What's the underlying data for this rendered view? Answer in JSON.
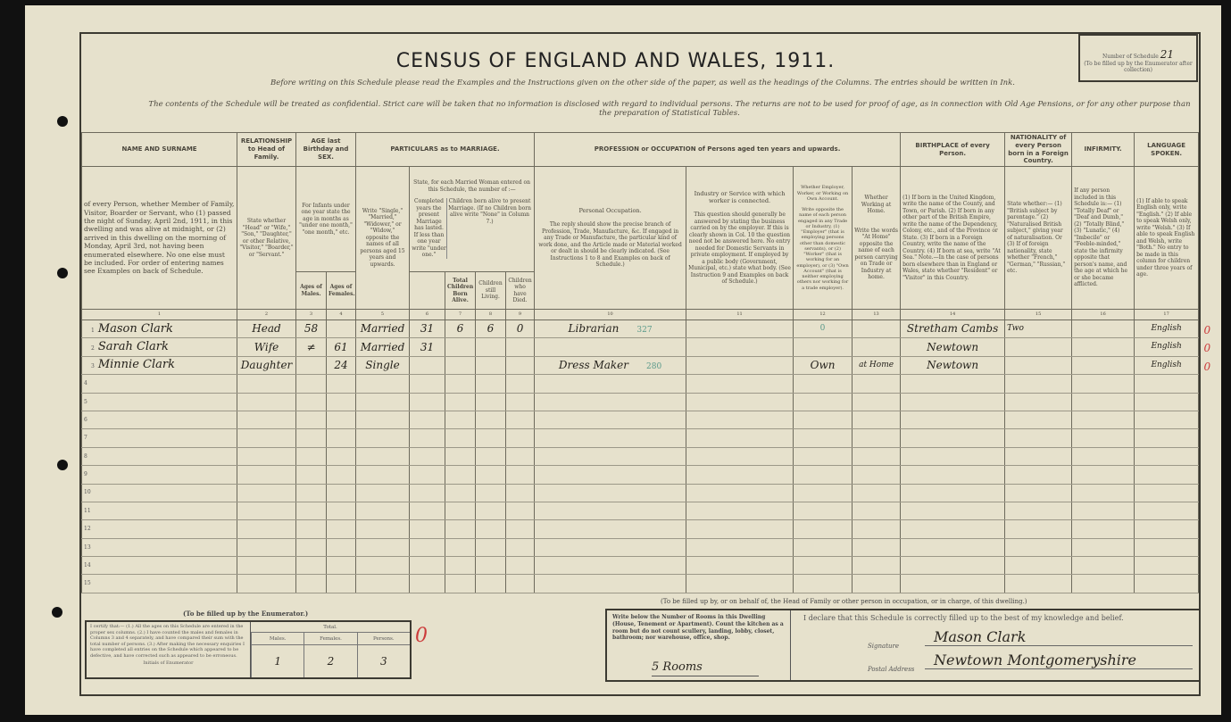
{
  "title": "CENSUS OF ENGLAND AND WALES, 1911.",
  "instructions_line1": "Before writing on this Schedule please read the Examples and the Instructions given on the other side of the paper, as well as the headings of the Columns. The entries should be written in Ink.",
  "instructions_line2": "The contents of the Schedule will be treated as confidential. Strict care will be taken that no information is disclosed with regard to individual persons. The returns are not to be used for proof of age, as in connection with Old Age Pensions, or for any other purpose than the preparation of Statistical Tables.",
  "schedule": {
    "label": "Number of Schedule",
    "value": "21",
    "note": "(To be filled up by the Enumerator after collection)"
  },
  "headers": {
    "name": "NAME AND SURNAME",
    "relationship": "RELATIONSHIP to Head of Family.",
    "age": "AGE last Birthday and SEX.",
    "marriage": "PARTICULARS as to MARRIAGE.",
    "profession": "PROFESSION or OCCUPATION of Persons aged ten years and upwards.",
    "birthplace": "BIRTHPLACE of every Person.",
    "nationality": "NATIONALITY of every Person born in a Foreign Country.",
    "infirmity": "INFIRMITY.",
    "language": "LANGUAGE SPOKEN."
  },
  "descs": {
    "name": "of every Person, whether Member of Family, Visitor, Boarder or Servant, who (1) passed the night of Sunday, April 2nd, 1911, in this dwelling and was alive at midnight, or (2) arrived in this dwelling on the morning of Monday, April 3rd, not having been enumerated elsewhere. No one else must be included. For order of entering names see Examples on back of Schedule.",
    "relationship": "State whether \"Head\" or \"Wife,\" \"Son,\" \"Daughter,\" or other Relative, \"Visitor,\" \"Boarder,\" or \"Servant.\"",
    "age": "For Infants under one year state the age in months as \"under one month,\" \"one month,\" etc.",
    "ages_males": "Ages of Males.",
    "ages_females": "Ages of Females.",
    "condition": "Write \"Single,\" \"Married,\" \"Widower,\" or \"Widow,\" opposite the names of all persons aged 15 years and upwards.",
    "married_woman": "State, for each Married Woman entered on this Schedule, the number of :—",
    "years_married": "Completed years the present Marriage has lasted. If less than one year write \"under one.\"",
    "children_header": "Children born alive to present Marriage. (If no Children born alive write \"None\" in Column 7.)",
    "total_children": "Total Children Born Alive.",
    "children_living": "Children still Living.",
    "children_died": "Children who have Died.",
    "personal_occupation": "Personal Occupation.",
    "personal_occupation_desc": "The reply should show the precise branch of Profession, Trade, Manufacture, &c. If engaged in any Trade or Manufacture, the particular kind of work done, and the Article made or Material worked or dealt in should be clearly indicated. (See Instructions 1 to 8 and Examples on back of Schedule.)",
    "industry": "Industry or Service with which worker is connected.",
    "industry_desc": "This question should generally be answered by stating the business carried on by the employer. If this is clearly shown in Col. 10 the question need not be answered here. No entry needed for Domestic Servants in private employment. If employed by a public body (Government, Municipal, etc.) state what body. (See Instruction 9 and Examples on back of Schedule.)",
    "employer": "Whether Employer, Worker, or Working on Own Account.",
    "employer_desc": "Write opposite the name of each person engaged in any Trade or Industry, (1) \"Employer\" (that is employing persons other than domestic servants), or (2) \"Worker\" (that is working for an employer), or (3) \"Own Account\" (that is neither employing others nor working for a trade employer).",
    "home": "Whether Working at Home.",
    "home_desc": "Write the words \"At Home\" opposite the name of each person carrying on Trade or Industry at home.",
    "birthplace": "(1) If born in the United Kingdom, write the name of the County, and Town, or Parish. (2) If born in any other part of the British Empire, write the name of the Dependency, Colony, etc., and of the Province or State. (3) If born in a Foreign Country, write the name of the Country. (4) If born at sea, write \"At Sea.\" Note.—In the case of persons born elsewhere than in England or Wales, state whether \"Resident\" or \"Visitor\" in this Country.",
    "nationality": "State whether:— (1) \"British subject by parentage.\" (2) \"Naturalised British subject,\" giving year of naturalisation. Or (3) If of foreign nationality, state whether \"French,\" \"German,\" \"Russian,\" etc.",
    "infirmity": "If any person included in this Schedule is:— (1) \"Totally Deaf\" or \"Deaf and Dumb,\" (2) \"Totally Blind,\" (3) \"Lunatic,\" (4) \"Imbecile\" or \"Feeble-minded,\" state the infirmity opposite that person's name, and the age at which he or she became afflicted.",
    "language": "(1) If able to speak English only, write \"English.\" (2) If able to speak Welsh only, write \"Welsh.\" (3) If able to speak English and Welsh, write \"Both.\" No entry to be made in this column for children under three years of age."
  },
  "column_numbers": [
    "1",
    "2",
    "3",
    "4",
    "5",
    "6",
    "7",
    "8",
    "9",
    "10",
    "11",
    "12",
    "13",
    "14",
    "15",
    "16",
    "17"
  ],
  "rows": [
    {
      "n": "1",
      "name": "Mason Clark",
      "rel": "Head",
      "male": "58",
      "female": "",
      "cond": "Married",
      "years": "31",
      "born": "6",
      "living": "6",
      "died": "0",
      "occ": "Librarian",
      "occ_code": "327",
      "industry": "",
      "employer": "0",
      "home": "",
      "birthplace": "Stretham Cambs",
      "nat": "Two",
      "inf": "",
      "lang": "English",
      "mark": "0"
    },
    {
      "n": "2",
      "name": "Sarah Clark",
      "rel": "Wife",
      "male": "≠",
      "female": "61",
      "cond": "Married",
      "years": "31",
      "born": "",
      "living": "",
      "died": "",
      "occ": "",
      "occ_code": "",
      "industry": "",
      "employer": "",
      "home": "",
      "birthplace": "Newtown",
      "nat": "",
      "inf": "",
      "lang": "English",
      "mark": "0"
    },
    {
      "n": "3",
      "name": "Minnie Clark",
      "rel": "Daughter",
      "male": "",
      "female": "24",
      "cond": "Single",
      "years": "",
      "born": "",
      "living": "",
      "died": "",
      "occ": "Dress Maker",
      "occ_code": "280",
      "industry": "",
      "employer": "Own",
      "home": "at Home",
      "birthplace": "Newtown",
      "nat": "",
      "inf": "",
      "lang": "English",
      "mark": "0"
    }
  ],
  "empty_row_numbers": [
    "4",
    "5",
    "6",
    "7",
    "8",
    "9",
    "10",
    "11",
    "12",
    "13",
    "14",
    "15"
  ],
  "enumerator": {
    "caption": "(To be filled up by the Enumerator.)",
    "certify": "I certify that:— (1.) All the ages on this Schedule are entered in the proper sex columns. (2.) I have counted the males and females in Columns 3 and 4 separately, and have compared their sum with the total number of persons. (3.) After making the necessary enquiries I have completed all entries on the Schedule which appeared to be defective, and have corrected such as appeared to be erroneous.",
    "initials_label": "Initials of Enumerator",
    "total_label": "Total.",
    "males_label": "Males.",
    "females_label": "Females.",
    "persons_label": "Persons.",
    "males": "1",
    "females": "2",
    "persons": "3",
    "red_mark": "0"
  },
  "head": {
    "caption": "(To be filled up by, or on behalf of, the Head of Family or other person in occupation, or in charge, of this dwelling.)",
    "rooms_instruction": "Write below the Number of Rooms in this Dwelling (House, Tenement or Apartment). Count the kitchen as a room but do not count scullery, landing, lobby, closet, bathroom; nor warehouse, office, shop.",
    "rooms": "5 Rooms",
    "declaration": "I declare that this Schedule is correctly filled up to the best of my knowledge and belief.",
    "signature_label": "Signature",
    "signature": "Mason Clark",
    "address_label": "Postal Address",
    "address": "Newtown Montgomeryshire"
  },
  "colors": {
    "paper": "#e6e1cc",
    "ink": "#2a2620",
    "green_annotation": "#5a9a8a",
    "red_annotation": "#cc3a3a"
  }
}
